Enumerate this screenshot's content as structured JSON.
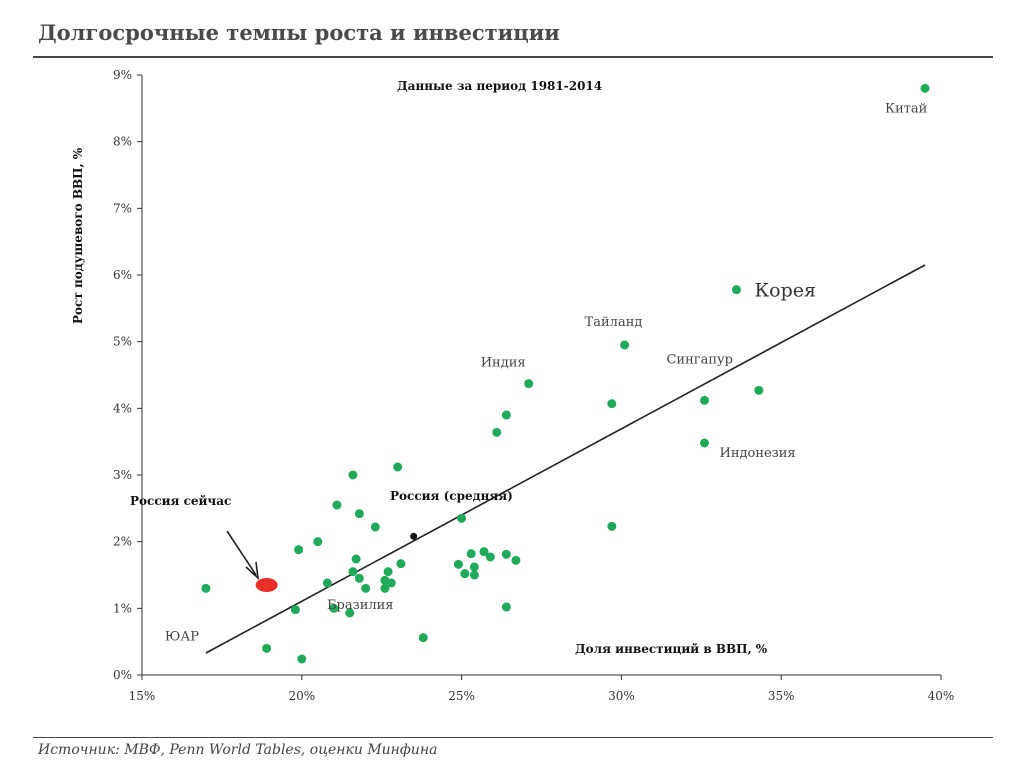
{
  "page": {
    "title": "Долгосрочные темпы роста и инвестиции",
    "source": "Источник: МВФ, Penn World Tables, оценки Минфина"
  },
  "colors": {
    "points": "#1faa59",
    "highlight": "#e8302a",
    "trend": "#222222",
    "average": "#111111"
  },
  "chart_data": {
    "type": "scatter",
    "subtitle": "Данные за период 1981-2014",
    "xlabel": "Доля инвестиций в ВВП, %",
    "ylabel": "Рост подушевого ВВП, %",
    "xlim": [
      15,
      40
    ],
    "ylim": [
      0,
      9
    ],
    "x_ticks": [
      15,
      20,
      25,
      30,
      35,
      40
    ],
    "x_tick_labels": [
      "15%",
      "20%",
      "25%",
      "30%",
      "35%",
      "40%"
    ],
    "y_ticks": [
      0,
      1,
      2,
      3,
      4,
      5,
      6,
      7,
      8,
      9
    ],
    "y_tick_labels": [
      "0%",
      "1%",
      "2%",
      "3%",
      "4%",
      "5%",
      "6%",
      "7%",
      "8%",
      "9%"
    ],
    "grid": false,
    "trendline": {
      "x": [
        17.0,
        39.5
      ],
      "y": [
        0.33,
        6.15
      ]
    },
    "points": [
      {
        "x": 39.5,
        "y": 8.8,
        "label": "Китай"
      },
      {
        "x": 33.6,
        "y": 5.78,
        "label": "Корея"
      },
      {
        "x": 30.1,
        "y": 4.95,
        "label": "Тайланд"
      },
      {
        "x": 27.1,
        "y": 4.37,
        "label": "Индия"
      },
      {
        "x": 32.6,
        "y": 4.12,
        "label": "Сингапур"
      },
      {
        "x": 32.6,
        "y": 3.48,
        "label": "Индонезия"
      },
      {
        "x": 17.0,
        "y": 1.3,
        "label": "ЮАР"
      },
      {
        "x": 34.3,
        "y": 4.27,
        "label": ""
      },
      {
        "x": 29.7,
        "y": 4.07,
        "label": ""
      },
      {
        "x": 29.7,
        "y": 2.23,
        "label": ""
      },
      {
        "x": 26.4,
        "y": 3.9,
        "label": ""
      },
      {
        "x": 26.1,
        "y": 3.64,
        "label": ""
      },
      {
        "x": 23.0,
        "y": 3.12,
        "label": ""
      },
      {
        "x": 21.6,
        "y": 3.0,
        "label": ""
      },
      {
        "x": 21.1,
        "y": 2.55,
        "label": ""
      },
      {
        "x": 21.8,
        "y": 2.42,
        "label": ""
      },
      {
        "x": 22.3,
        "y": 2.22,
        "label": ""
      },
      {
        "x": 25.0,
        "y": 2.35,
        "label": ""
      },
      {
        "x": 20.5,
        "y": 2.0,
        "label": ""
      },
      {
        "x": 19.9,
        "y": 1.88,
        "label": ""
      },
      {
        "x": 21.7,
        "y": 1.74,
        "label": ""
      },
      {
        "x": 23.1,
        "y": 1.67,
        "label": ""
      },
      {
        "x": 24.9,
        "y": 1.66,
        "label": ""
      },
      {
        "x": 25.3,
        "y": 1.82,
        "label": ""
      },
      {
        "x": 25.7,
        "y": 1.85,
        "label": ""
      },
      {
        "x": 25.9,
        "y": 1.77,
        "label": ""
      },
      {
        "x": 26.4,
        "y": 1.81,
        "label": ""
      },
      {
        "x": 26.7,
        "y": 1.72,
        "label": ""
      },
      {
        "x": 25.4,
        "y": 1.62,
        "label": ""
      },
      {
        "x": 25.1,
        "y": 1.52,
        "label": ""
      },
      {
        "x": 25.4,
        "y": 1.5,
        "label": ""
      },
      {
        "x": 21.6,
        "y": 1.55,
        "label": ""
      },
      {
        "x": 21.8,
        "y": 1.45,
        "label": ""
      },
      {
        "x": 22.7,
        "y": 1.55,
        "label": ""
      },
      {
        "x": 22.8,
        "y": 1.38,
        "label": ""
      },
      {
        "x": 22.6,
        "y": 1.42,
        "label": ""
      },
      {
        "x": 20.8,
        "y": 1.38,
        "label": ""
      },
      {
        "x": 22.0,
        "y": 1.3,
        "label": ""
      },
      {
        "x": 22.6,
        "y": 1.3,
        "label": ""
      },
      {
        "x": 19.8,
        "y": 0.98,
        "label": ""
      },
      {
        "x": 21.0,
        "y": 1.0,
        "label": ""
      },
      {
        "x": 21.5,
        "y": 0.93,
        "label": ""
      },
      {
        "x": 26.4,
        "y": 1.02,
        "label": ""
      },
      {
        "x": 23.8,
        "y": 0.56,
        "label": ""
      },
      {
        "x": 18.9,
        "y": 0.4,
        "label": ""
      },
      {
        "x": 20.0,
        "y": 0.24,
        "label": ""
      }
    ],
    "label_positions": {
      "Китай": {
        "dx": -40,
        "dy": 24,
        "big": false
      },
      "Корея": {
        "dx": 18,
        "dy": 7,
        "big": true
      },
      "Тайланд": {
        "dx": -40,
        "dy": -19,
        "big": false
      },
      "Индия": {
        "dx": -48,
        "dy": -17,
        "big": false
      },
      "Сингапур": {
        "dx": -38,
        "dy": -37,
        "big": false
      },
      "Индонезия": {
        "dx": 15,
        "dy": 14,
        "big": false
      },
      "ЮАР": {
        "dx": -41,
        "dy": 52,
        "big": false
      }
    },
    "annotations": {
      "brazil_label": "Бразилия",
      "russia_now": {
        "label": "Россия сейчас",
        "x": 18.9,
        "y": 1.35
      },
      "russia_avg": {
        "label": "Россия (средняя)",
        "x": 23.5,
        "y": 2.08
      }
    }
  }
}
